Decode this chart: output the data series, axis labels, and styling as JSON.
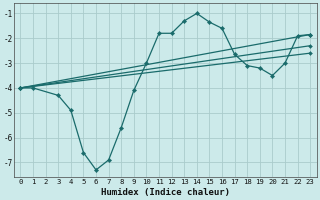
{
  "xlabel": "Humidex (Indice chaleur)",
  "bg_color": "#cceaea",
  "grid_color": "#aacccc",
  "line_color": "#1a6b6b",
  "xlim": [
    -0.5,
    23.5
  ],
  "ylim": [
    -7.6,
    -0.6
  ],
  "yticks": [
    -7,
    -6,
    -5,
    -4,
    -3,
    -2,
    -1
  ],
  "xticks": [
    0,
    1,
    2,
    3,
    4,
    5,
    6,
    7,
    8,
    9,
    10,
    11,
    12,
    13,
    14,
    15,
    16,
    17,
    18,
    19,
    20,
    21,
    22,
    23
  ],
  "curves": [
    {
      "x": [
        0,
        1,
        3,
        4,
        5,
        6,
        7,
        8,
        9,
        10,
        11,
        12,
        13,
        14,
        15,
        16,
        17,
        18,
        19,
        20,
        21,
        22,
        23
      ],
      "y": [
        -4.0,
        -4.0,
        -4.3,
        -4.9,
        -6.6,
        -7.3,
        -6.9,
        -5.6,
        -4.1,
        -3.0,
        -1.8,
        -1.8,
        -1.3,
        -1.0,
        -1.35,
        -1.6,
        -2.65,
        -3.1,
        -3.2,
        -3.5,
        -3.0,
        -1.9,
        -1.85
      ]
    },
    {
      "x": [
        0,
        23
      ],
      "y": [
        -4.0,
        -1.85
      ]
    },
    {
      "x": [
        0,
        23
      ],
      "y": [
        -4.0,
        -2.3
      ]
    },
    {
      "x": [
        0,
        23
      ],
      "y": [
        -4.0,
        -2.6
      ]
    }
  ]
}
